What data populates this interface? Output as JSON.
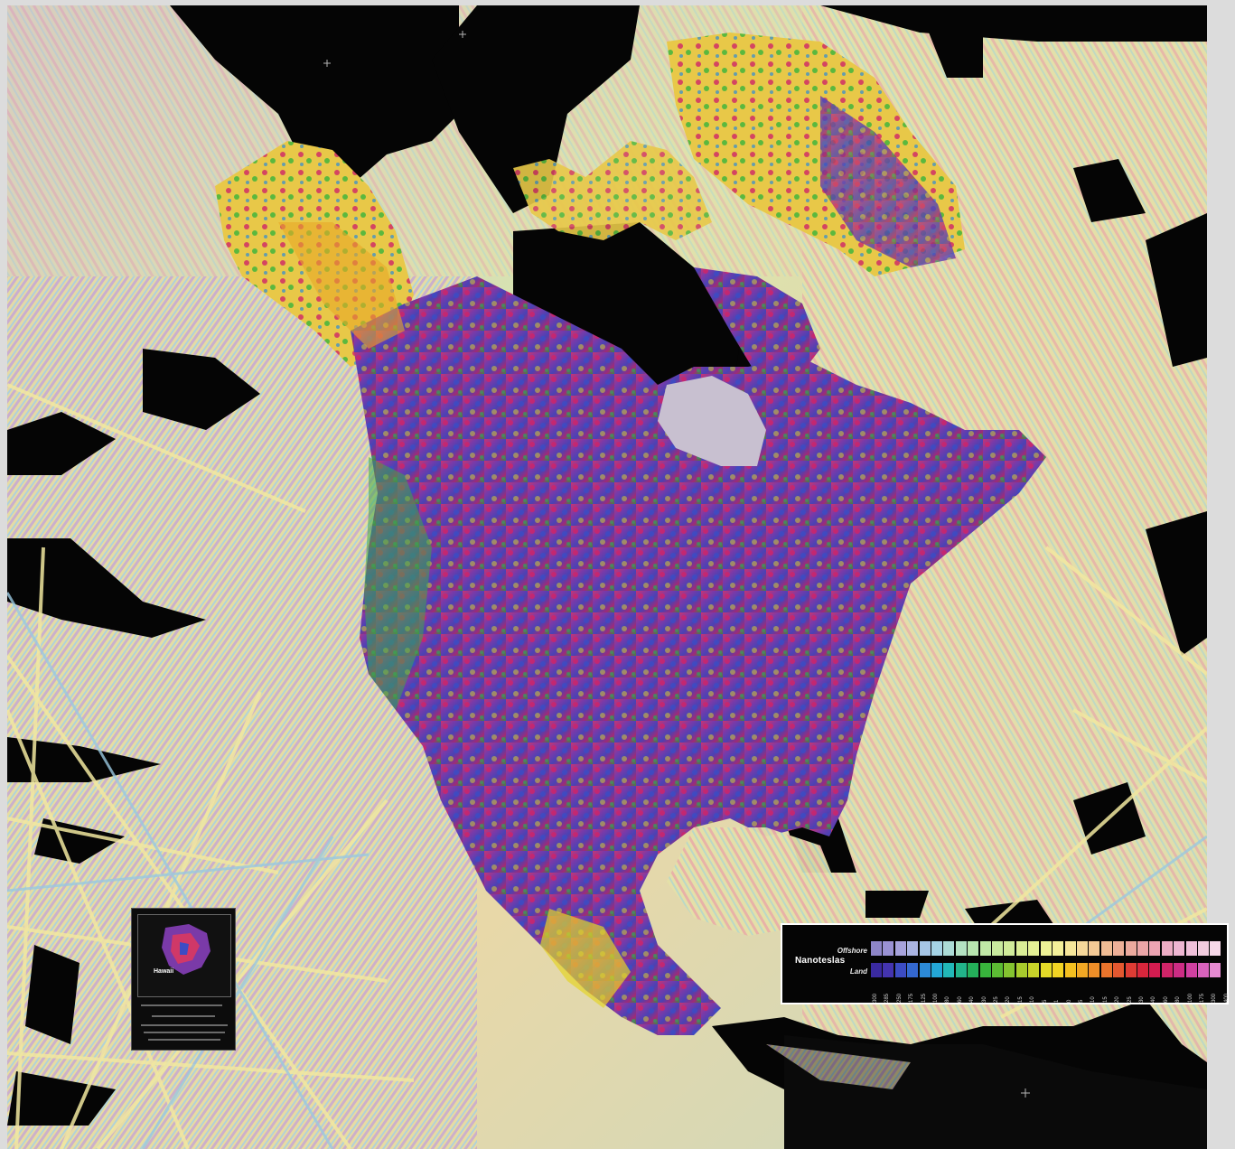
{
  "legend": {
    "title": "Nanoteslas",
    "offshore_label": "Offshore",
    "land_label": "Land",
    "offshore_colors": [
      "#8e86c8",
      "#9a92d4",
      "#a7a3dc",
      "#aab4e2",
      "#a6c6e6",
      "#a6d4e6",
      "#acdcd6",
      "#b4e2c2",
      "#b8e6b0",
      "#c0e8a6",
      "#c8ea9e",
      "#d0ec9a",
      "#daee96",
      "#e4f096",
      "#eef296",
      "#f4f09a",
      "#f6e69a",
      "#f6d89a",
      "#f4ca96",
      "#f0bc94",
      "#eeb098",
      "#ecaa9e",
      "#eca6a8",
      "#eca4b2",
      "#ecacc4",
      "#eeb6d2",
      "#f0c0da",
      "#f2ccdf",
      "#f6d8e8"
    ],
    "land_colors": [
      "#3a2aa0",
      "#4434b0",
      "#3c4cc4",
      "#3468d0",
      "#2c8ad8",
      "#24a8d8",
      "#22b8b8",
      "#22b48a",
      "#24b05a",
      "#38b43c",
      "#5cbc34",
      "#84c430",
      "#a8cc2c",
      "#c8d42a",
      "#e4da28",
      "#f2d424",
      "#f4c020",
      "#f2a824",
      "#ee8e28",
      "#ea742c",
      "#e45830",
      "#de3c34",
      "#d8263c",
      "#d41c50",
      "#d02468",
      "#cc2c84",
      "#d040a0",
      "#d862bc",
      "#e68ad2"
    ],
    "ticks": [
      "300",
      "285",
      "250",
      "175",
      "125",
      "100",
      "80",
      "60",
      "40",
      "30",
      "25",
      "20",
      "15",
      "10",
      "5",
      "1",
      "0",
      "5",
      "10",
      "15",
      "20",
      "25",
      "30",
      "40",
      "60",
      "80",
      "100",
      "175",
      "300",
      "400"
    ]
  },
  "inset": {
    "label": "Hawaii"
  }
}
